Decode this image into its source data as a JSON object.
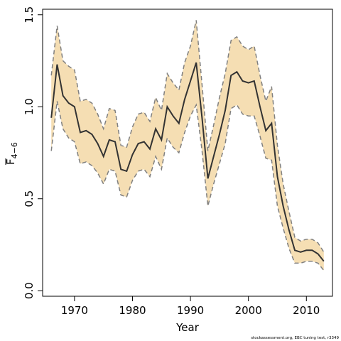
{
  "chart_data": {
    "type": "line",
    "title": "",
    "xlabel": "Year",
    "ylabel": "F",
    "ylabel_subscript": "4−6",
    "credit": "stockassessment.org, EBC tuning test, r3349",
    "xlim": [
      1964.5,
      2014.5
    ],
    "ylim": [
      -0.03,
      1.53
    ],
    "xticks": [
      1970,
      1980,
      1990,
      2000,
      2010
    ],
    "yticks": [
      0.0,
      0.5,
      1.0,
      1.5
    ],
    "ytick_labels": [
      "0.0",
      "0.5",
      "1.0",
      "1.5"
    ],
    "grid": false,
    "legend": "none",
    "band_color": "#f5deb3",
    "band_edge_color": "#808080",
    "line_color": "#333333",
    "x": [
      1966,
      1967,
      1968,
      1969,
      1970,
      1971,
      1972,
      1973,
      1974,
      1975,
      1976,
      1977,
      1978,
      1979,
      1980,
      1981,
      1982,
      1983,
      1984,
      1985,
      1986,
      1987,
      1988,
      1989,
      1990,
      1991,
      1992,
      1993,
      1994,
      1995,
      1996,
      1997,
      1998,
      1999,
      2000,
      2001,
      2002,
      2003,
      2004,
      2005,
      2006,
      2007,
      2008,
      2009,
      2010,
      2011,
      2012,
      2013
    ],
    "series": [
      {
        "values": [
          0.94,
          1.23,
          1.06,
          1.02,
          1.0,
          0.86,
          0.87,
          0.85,
          0.8,
          0.73,
          0.82,
          0.81,
          0.66,
          0.65,
          0.74,
          0.8,
          0.81,
          0.77,
          0.88,
          0.82,
          1.0,
          0.95,
          0.91,
          1.04,
          1.14,
          1.24,
          0.94,
          0.61,
          0.73,
          0.85,
          0.98,
          1.17,
          1.19,
          1.14,
          1.13,
          1.14,
          1.0,
          0.87,
          0.91,
          0.62,
          0.46,
          0.33,
          0.22,
          0.21,
          0.22,
          0.22,
          0.2,
          0.16
        ]
      },
      {
        "values": [
          1.17,
          1.44,
          1.25,
          1.22,
          1.2,
          1.03,
          1.04,
          1.02,
          0.96,
          0.88,
          0.99,
          0.98,
          0.79,
          0.78,
          0.89,
          0.96,
          0.97,
          0.92,
          1.05,
          0.98,
          1.18,
          1.13,
          1.09,
          1.24,
          1.33,
          1.47,
          1.12,
          0.76,
          0.9,
          1.05,
          1.18,
          1.36,
          1.38,
          1.33,
          1.31,
          1.33,
          1.17,
          1.03,
          1.11,
          0.79,
          0.58,
          0.43,
          0.29,
          0.27,
          0.28,
          0.28,
          0.26,
          0.21
        ]
      },
      {
        "values": [
          0.76,
          1.03,
          0.88,
          0.83,
          0.81,
          0.69,
          0.7,
          0.68,
          0.64,
          0.58,
          0.66,
          0.65,
          0.52,
          0.51,
          0.6,
          0.65,
          0.66,
          0.62,
          0.73,
          0.66,
          0.83,
          0.78,
          0.75,
          0.86,
          0.95,
          1.01,
          0.76,
          0.46,
          0.58,
          0.69,
          0.8,
          0.99,
          1.01,
          0.96,
          0.95,
          0.95,
          0.84,
          0.72,
          0.71,
          0.46,
          0.34,
          0.23,
          0.15,
          0.15,
          0.16,
          0.16,
          0.15,
          0.11
        ]
      }
    ]
  }
}
